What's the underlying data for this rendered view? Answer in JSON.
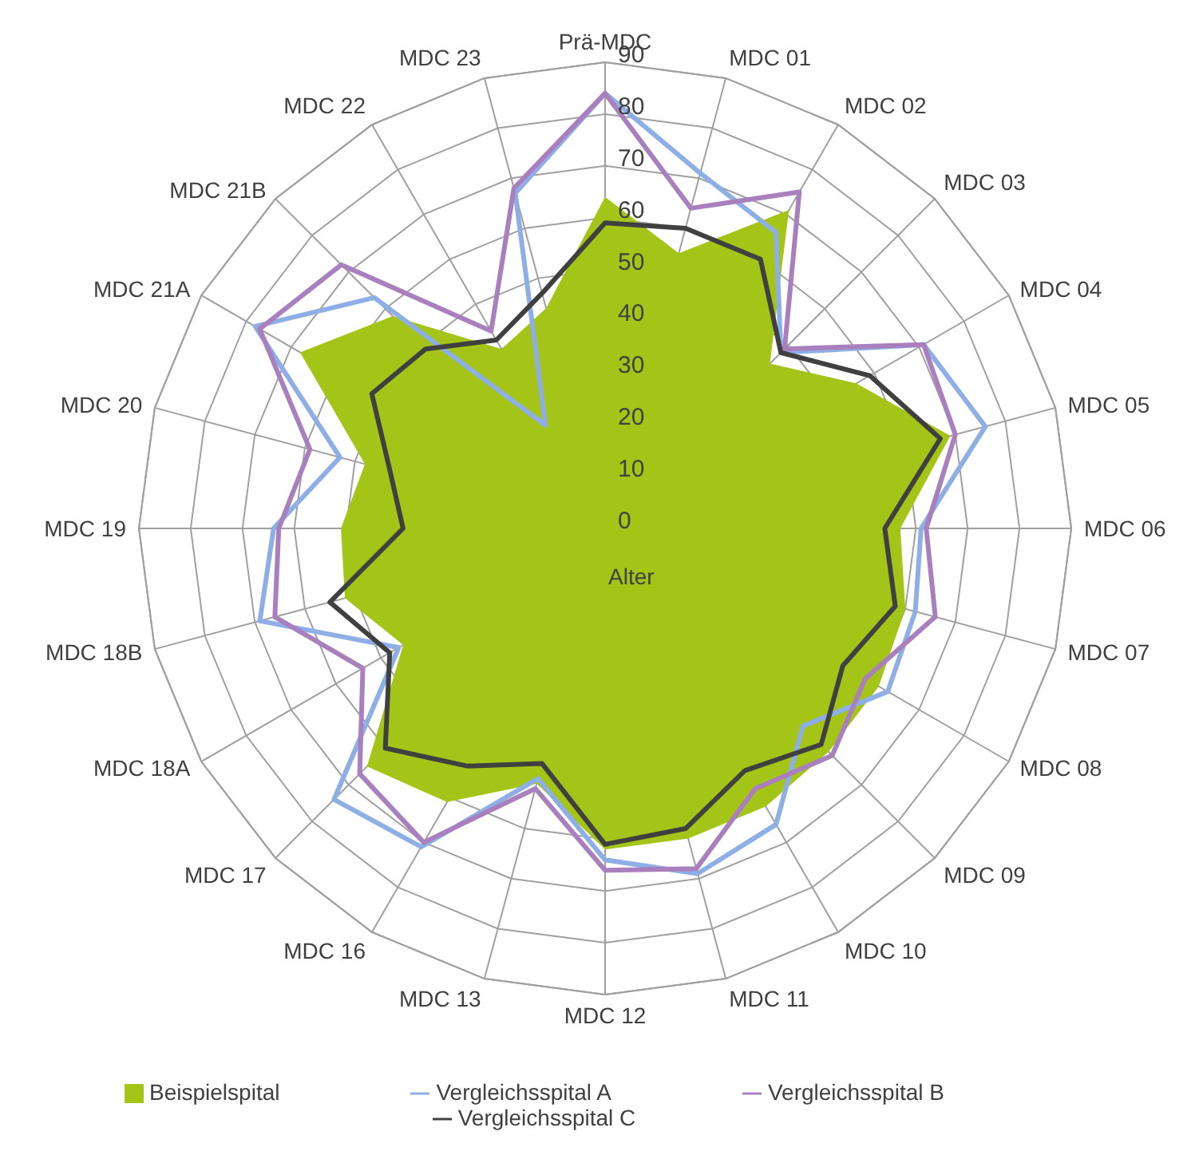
{
  "chart_data": {
    "type": "radar",
    "categories": [
      "Prä-MDC",
      "MDC 01",
      "MDC 02",
      "MDC 03",
      "MDC 04",
      "MDC 05",
      "MDC 06",
      "MDC 07",
      "MDC 08",
      "MDC 09",
      "MDC 10",
      "MDC 11",
      "MDC 12",
      "MDC 13",
      "MDC 16",
      "MDC 17",
      "MDC 18A",
      "MDC 18B",
      "MDC 19",
      "MDC 20",
      "MDC 21A",
      "MDC 21B",
      "MDC 22",
      "MDC 23"
    ],
    "series": [
      {
        "name": "Beispielspital",
        "type": "area",
        "color": "#a5c418",
        "values": [
          64,
          55,
          71,
          45,
          56,
          69,
          57,
          60,
          61,
          61,
          62,
          62,
          62,
          51,
          61,
          65,
          45,
          52,
          51,
          48,
          68,
          58,
          40,
          44
        ]
      },
      {
        "name": "Vergleichsspital A",
        "color": "#8eaee6",
        "values": [
          84,
          71,
          66,
          48,
          71,
          76,
          61,
          62,
          63,
          54,
          66,
          69,
          64,
          50,
          71,
          74,
          46,
          69,
          64,
          53,
          78,
          63,
          23,
          67
        ]
      },
      {
        "name": "Vergleichsspital B",
        "color": "#a97fbd",
        "values": [
          84,
          64,
          75,
          49,
          71,
          70,
          62,
          66,
          58,
          62,
          58,
          68,
          66,
          52,
          70,
          67,
          54,
          66,
          63,
          59,
          77,
          72,
          44,
          68
        ]
      },
      {
        "name": "Vergleichsspital C",
        "color": "#404040",
        "values": [
          59,
          60,
          60,
          48,
          59,
          67,
          54,
          58,
          53,
          59,
          54,
          60,
          61,
          47,
          53,
          60,
          48,
          55,
          39,
          43,
          52,
          49,
          42,
          47
        ]
      }
    ],
    "ylim": [
      0,
      90
    ],
    "yticks": [
      0,
      10,
      20,
      30,
      40,
      50,
      60,
      70,
      80,
      90
    ],
    "grid": true,
    "legend": "bottom",
    "annotations": [
      "Alter"
    ]
  }
}
